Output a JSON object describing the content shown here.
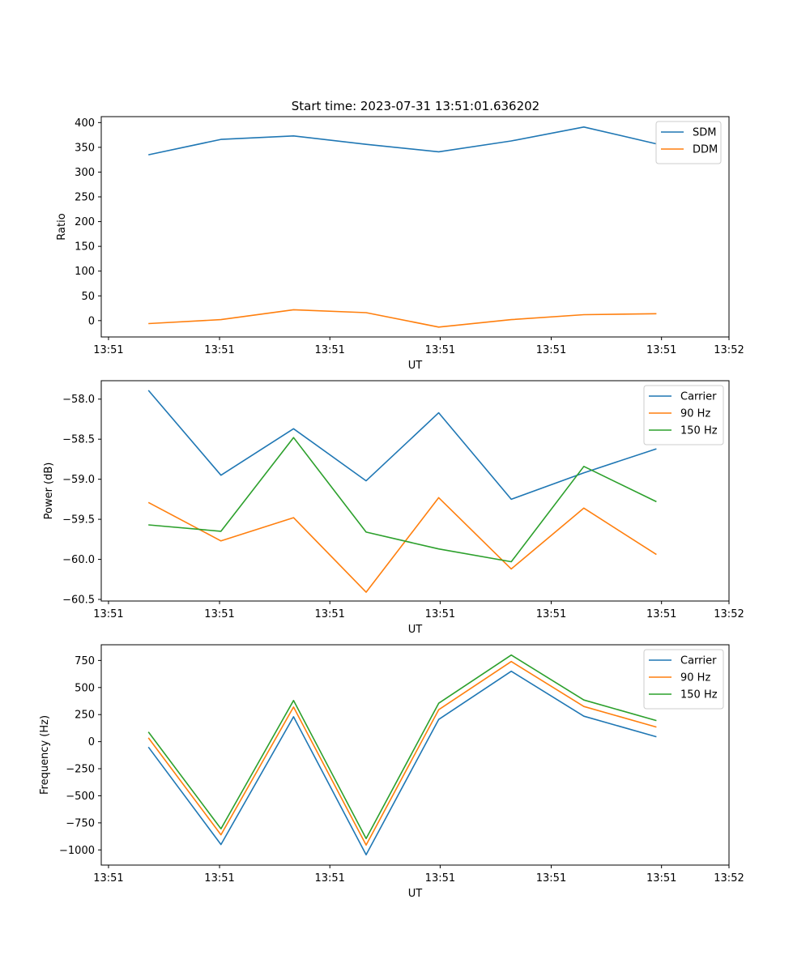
{
  "title": "Start time: 2023-07-31 13:51:01.636202",
  "colors": {
    "c0": "#1f77b4",
    "c1": "#ff7f0e",
    "c2": "#2ca02c"
  },
  "chart_data": [
    {
      "type": "line",
      "title": "Start time: 2023-07-31 13:51:01.636202",
      "xlabel": "UT",
      "ylabel": "Ratio",
      "x": [
        1,
        2,
        3,
        4,
        5,
        6,
        7,
        8
      ],
      "xlim": [
        0.35,
        9.0
      ],
      "ylim": [
        -33,
        412
      ],
      "yticks": [
        0,
        50,
        100,
        150,
        200,
        250,
        300,
        350,
        400
      ],
      "ytick_labels": [
        "0",
        "50",
        "100",
        "150",
        "200",
        "250",
        "300",
        "350",
        "400"
      ],
      "xticks": [
        0.45,
        1.98,
        3.5,
        5.02,
        6.55,
        8.07,
        9.0
      ],
      "xtick_labels": [
        "13:51",
        "13:51",
        "13:51",
        "13:51",
        "13:51",
        "13:51",
        "13:52"
      ],
      "legend_position": "top-right",
      "series": [
        {
          "name": "SDM",
          "color": "#1f77b4",
          "values": [
            335,
            366,
            373,
            356,
            341,
            363,
            391,
            357
          ]
        },
        {
          "name": "DDM",
          "color": "#ff7f0e",
          "values": [
            -6,
            2,
            22,
            16,
            -13,
            2,
            12,
            14
          ]
        }
      ]
    },
    {
      "type": "line",
      "title": "",
      "xlabel": "UT",
      "ylabel": "Power (dB)",
      "x": [
        1,
        2,
        3,
        4,
        5,
        6,
        7,
        8
      ],
      "xlim": [
        0.35,
        9.0
      ],
      "ylim": [
        -60.52,
        -57.77
      ],
      "yticks": [
        -60.5,
        -60.0,
        -59.5,
        -59.0,
        -58.5,
        -58.0
      ],
      "ytick_labels": [
        "−60.5",
        "−60.0",
        "−59.5",
        "−59.0",
        "−58.5",
        "−58.0"
      ],
      "xticks": [
        0.45,
        1.98,
        3.5,
        5.02,
        6.55,
        8.07,
        9.0
      ],
      "xtick_labels": [
        "13:51",
        "13:51",
        "13:51",
        "13:51",
        "13:51",
        "13:51",
        "13:52"
      ],
      "legend_position": "top-right",
      "series": [
        {
          "name": "Carrier",
          "color": "#1f77b4",
          "values": [
            -57.89,
            -58.95,
            -58.37,
            -59.02,
            -58.17,
            -59.25,
            -58.92,
            -58.62
          ]
        },
        {
          "name": "90 Hz",
          "color": "#ff7f0e",
          "values": [
            -59.29,
            -59.77,
            -59.48,
            -60.41,
            -59.23,
            -60.12,
            -59.36,
            -59.94
          ]
        },
        {
          "name": "150 Hz",
          "color": "#2ca02c",
          "values": [
            -59.57,
            -59.65,
            -58.48,
            -59.66,
            -59.87,
            -60.03,
            -58.84,
            -59.28
          ]
        }
      ]
    },
    {
      "type": "line",
      "title": "",
      "xlabel": "UT",
      "ylabel": "Frequency (Hz)",
      "x": [
        1,
        2,
        3,
        4,
        5,
        6,
        7,
        8
      ],
      "xlim": [
        0.35,
        9.0
      ],
      "ylim": [
        -1140,
        895
      ],
      "yticks": [
        -1000,
        -750,
        -500,
        -250,
        0,
        250,
        500,
        750
      ],
      "ytick_labels": [
        "−1000",
        "−750",
        "−500",
        "−250",
        "0",
        "250",
        "500",
        "750"
      ],
      "xticks": [
        0.45,
        1.98,
        3.5,
        5.02,
        6.55,
        8.07,
        9.0
      ],
      "xtick_labels": [
        "13:51",
        "13:51",
        "13:51",
        "13:51",
        "13:51",
        "13:51",
        "13:52"
      ],
      "legend_position": "top-right",
      "series": [
        {
          "name": "Carrier",
          "color": "#1f77b4",
          "values": [
            -50,
            -950,
            230,
            -1045,
            205,
            650,
            235,
            45
          ]
        },
        {
          "name": "90 Hz",
          "color": "#ff7f0e",
          "values": [
            35,
            -860,
            320,
            -955,
            295,
            740,
            325,
            135
          ]
        },
        {
          "name": "150 Hz",
          "color": "#2ca02c",
          "values": [
            90,
            -805,
            380,
            -895,
            355,
            800,
            385,
            195
          ]
        }
      ]
    }
  ]
}
